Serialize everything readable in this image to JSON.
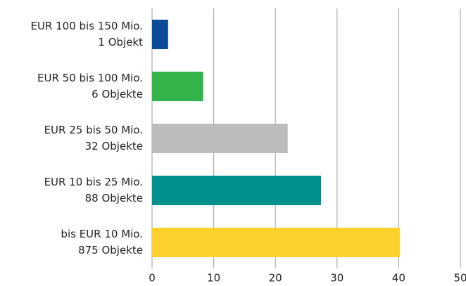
{
  "chart_data": {
    "type": "hbar",
    "categories": [
      [
        "EUR 100 bis 150 Mio.",
        "1 Objekt"
      ],
      [
        "EUR 50 bis 100 Mio.",
        "6 Objekte"
      ],
      [
        "EUR 25 bis 50 Mio.",
        "32 Objekte"
      ],
      [
        "EUR 10 bis 25 Mio.",
        "88 Objekte"
      ],
      [
        "bis EUR 10 Mio.",
        "875 Objekte"
      ]
    ],
    "values": [
      2.6,
      8.3,
      22.0,
      27.4,
      40.2
    ],
    "colors": [
      "#0a4a96",
      "#33b44a",
      "#bbbcbe",
      "#00918f",
      "#fdd12c"
    ],
    "xlim": [
      0,
      50
    ],
    "xticks": [
      0,
      10,
      20,
      30,
      40,
      50
    ],
    "grid": true
  }
}
